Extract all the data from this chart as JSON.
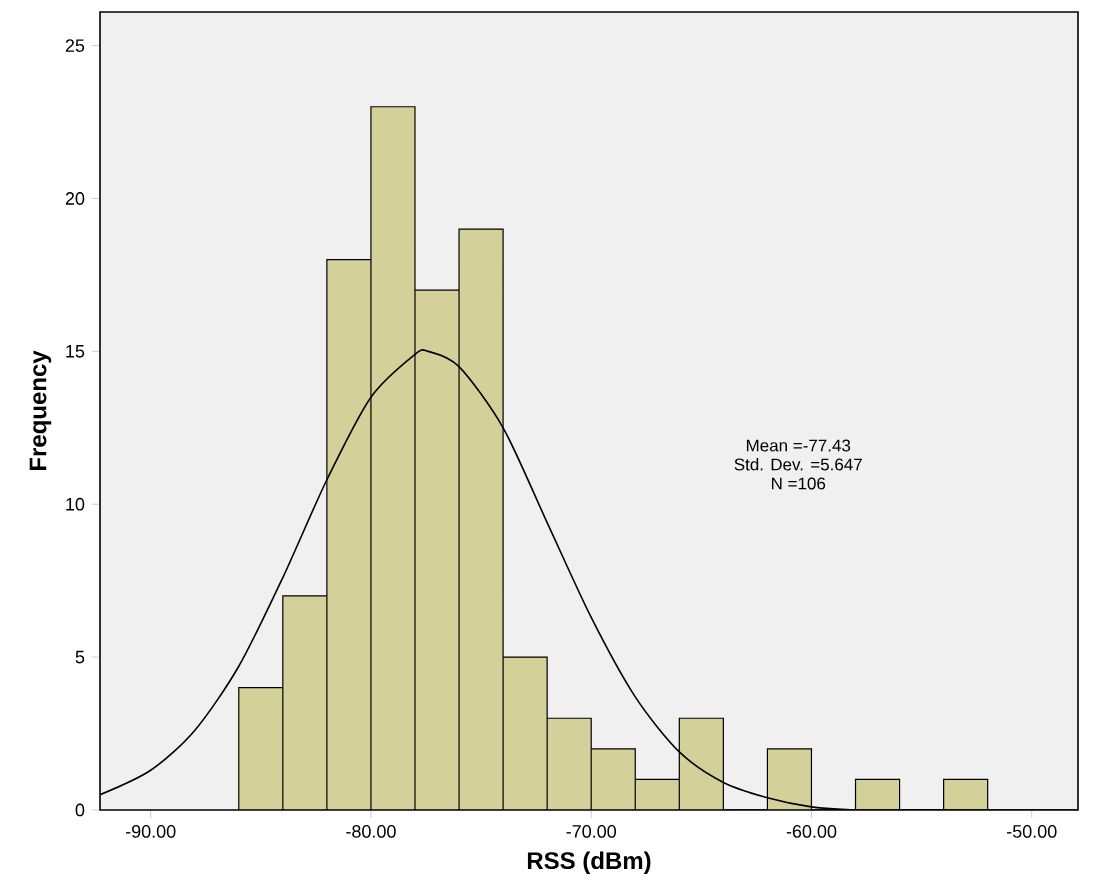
{
  "chart_data": {
    "type": "histogram",
    "xlabel": "RSS (dBm)",
    "ylabel": "Frequency",
    "series": [
      {
        "color": "#d3d09a",
        "bins": [
          -86,
          -84,
          -82,
          -80,
          -78,
          -76,
          -74,
          -72,
          -70,
          -68,
          -66,
          -64,
          -62,
          -60,
          -58,
          -56,
          -54,
          -52
        ],
        "values": [
          4,
          7,
          18,
          23,
          17,
          19,
          5,
          3,
          2,
          1,
          3,
          0,
          2,
          0,
          1,
          0,
          1
        ]
      },
      {
        "type": "line",
        "color": "#000000",
        "x": [
          -92.3,
          -90,
          -88,
          -86,
          -84,
          -82,
          -80,
          -78,
          -77.4,
          -76,
          -74,
          -72,
          -70,
          -68,
          -66,
          -64,
          -62,
          -60,
          -58,
          -56,
          -54,
          -52,
          -50,
          -47.9
        ],
        "values": [
          0.5,
          1.3,
          2.6,
          4.7,
          7.6,
          10.8,
          13.5,
          14.9,
          15.0,
          14.5,
          12.5,
          9.4,
          6.3,
          3.7,
          1.9,
          0.9,
          0.4,
          0.1,
          0.0,
          0.0,
          0.0,
          0.0,
          0.0,
          0.0
        ]
      }
    ],
    "xlim": [
      -92.3,
      -47.9
    ],
    "ylim": [
      0,
      26.1
    ],
    "xticks": [
      {
        "value": -90,
        "label": "-90.00"
      },
      {
        "value": -80,
        "label": "-80.00"
      },
      {
        "value": -70,
        "label": "-70.00"
      },
      {
        "value": -60,
        "label": "-60.00"
      },
      {
        "value": -50,
        "label": "-50.00"
      }
    ],
    "yticks": [
      0,
      5,
      10,
      15,
      20,
      25
    ],
    "annotations": [
      "Mean =-77.43",
      "Std. Dev. =5.647",
      "N =106"
    ],
    "grid": false
  }
}
